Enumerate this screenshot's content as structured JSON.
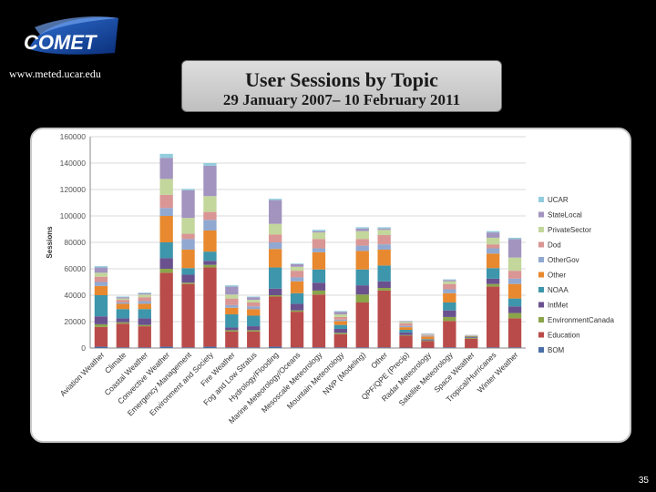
{
  "header": {
    "logo_text": "COMET",
    "url": "www.meted.ucar.edu"
  },
  "title": {
    "line1": "User Sessions by Topic",
    "line2": "29 January 2007– 10 February 2011"
  },
  "page_number": "35",
  "chart_data": {
    "type": "stacked-bar",
    "ylabel": "Sessions",
    "ylim": [
      0,
      160000
    ],
    "yticks": [
      0,
      20000,
      40000,
      60000,
      80000,
      100000,
      120000,
      140000,
      160000
    ],
    "gridlines": true,
    "legend_position": "right",
    "categories": [
      "Aviation Weather",
      "Climate",
      "Coastal Weather",
      "Convective Weather",
      "Emergency Management",
      "Environment and Society",
      "Fire Weather",
      "Fog and Low Stratus",
      "Hydrology/Flooding",
      "Marine Meteorology/Oceans",
      "Mesoscale Meteorology",
      "Mountain Meteorology",
      "NWP (Modeling)",
      "Other",
      "QPF/QPE (Precip)",
      "Radar Meteorology",
      "Satellite Meteorology",
      "Space Weather",
      "Tropical/Hurricanes",
      "Winter Weather"
    ],
    "series": [
      {
        "name": "BOM",
        "color": "#4a6fa8",
        "values": [
          1000,
          500,
          500,
          1000,
          500,
          1000,
          500,
          500,
          1000,
          500,
          500,
          500,
          500,
          500,
          300,
          200,
          500,
          100,
          500,
          500
        ]
      },
      {
        "name": "Education",
        "color": "#b94c4a",
        "values": [
          15000,
          18000,
          16000,
          56000,
          48000,
          60000,
          12000,
          12000,
          38000,
          27000,
          40000,
          10000,
          34000,
          43000,
          9000,
          5000,
          20000,
          7000,
          46000,
          22000
        ]
      },
      {
        "name": "EnvironmentCanada",
        "color": "#8aa54a",
        "values": [
          2000,
          1000,
          1000,
          3000,
          1000,
          2000,
          1000,
          1000,
          1000,
          1000,
          3000,
          1000,
          6000,
          2000,
          500,
          500,
          3000,
          500,
          2000,
          4000
        ]
      },
      {
        "name": "IntMet",
        "color": "#6a518e",
        "values": [
          6000,
          3000,
          5000,
          8000,
          6000,
          3000,
          2000,
          3000,
          5000,
          5000,
          6000,
          3000,
          7000,
          5000,
          2000,
          500,
          5000,
          500,
          4000,
          5000
        ]
      },
      {
        "name": "NOAA",
        "color": "#3d96ab",
        "values": [
          16000,
          7000,
          7000,
          12000,
          5000,
          7000,
          10000,
          8000,
          16000,
          8000,
          10000,
          3000,
          12000,
          12000,
          2000,
          500,
          6000,
          500,
          8000,
          6000
        ]
      },
      {
        "name": "Other",
        "color": "#e8892f",
        "values": [
          7000,
          4000,
          4000,
          20000,
          14000,
          16000,
          5000,
          5000,
          14000,
          9000,
          13000,
          3000,
          14000,
          12000,
          2000,
          2000,
          7000,
          500,
          11000,
          11000
        ]
      },
      {
        "name": "OtherGov",
        "color": "#91a9d1",
        "values": [
          3000,
          1000,
          2000,
          6000,
          8000,
          8000,
          2000,
          2000,
          5000,
          3000,
          3000,
          1000,
          4000,
          4000,
          1000,
          500,
          3000,
          200,
          4000,
          4000
        ]
      },
      {
        "name": "Dod",
        "color": "#d99694",
        "values": [
          4000,
          2000,
          3000,
          10000,
          4000,
          6000,
          5000,
          3000,
          6000,
          5000,
          7000,
          2000,
          5000,
          7000,
          2000,
          500,
          4000,
          200,
          3000,
          6000
        ]
      },
      {
        "name": "PrivateSector",
        "color": "#c3d69b",
        "values": [
          3000,
          1000,
          2000,
          12000,
          12000,
          12000,
          3000,
          2000,
          8000,
          3000,
          5000,
          2000,
          6000,
          4000,
          1000,
          500,
          2000,
          200,
          5000,
          10000
        ]
      },
      {
        "name": "StateLocal",
        "color": "#a294bf",
        "values": [
          4000,
          1000,
          1000,
          16000,
          21000,
          23000,
          6000,
          2000,
          18000,
          2000,
          1000,
          2000,
          2000,
          1000,
          500,
          500,
          1000,
          200,
          4000,
          14000
        ]
      },
      {
        "name": "UCAR",
        "color": "#93cddd",
        "values": [
          1000,
          500,
          500,
          3000,
          1000,
          2000,
          1000,
          500,
          1000,
          500,
          1000,
          500,
          1000,
          1000,
          200,
          200,
          500,
          100,
          1000,
          1000
        ]
      }
    ]
  }
}
